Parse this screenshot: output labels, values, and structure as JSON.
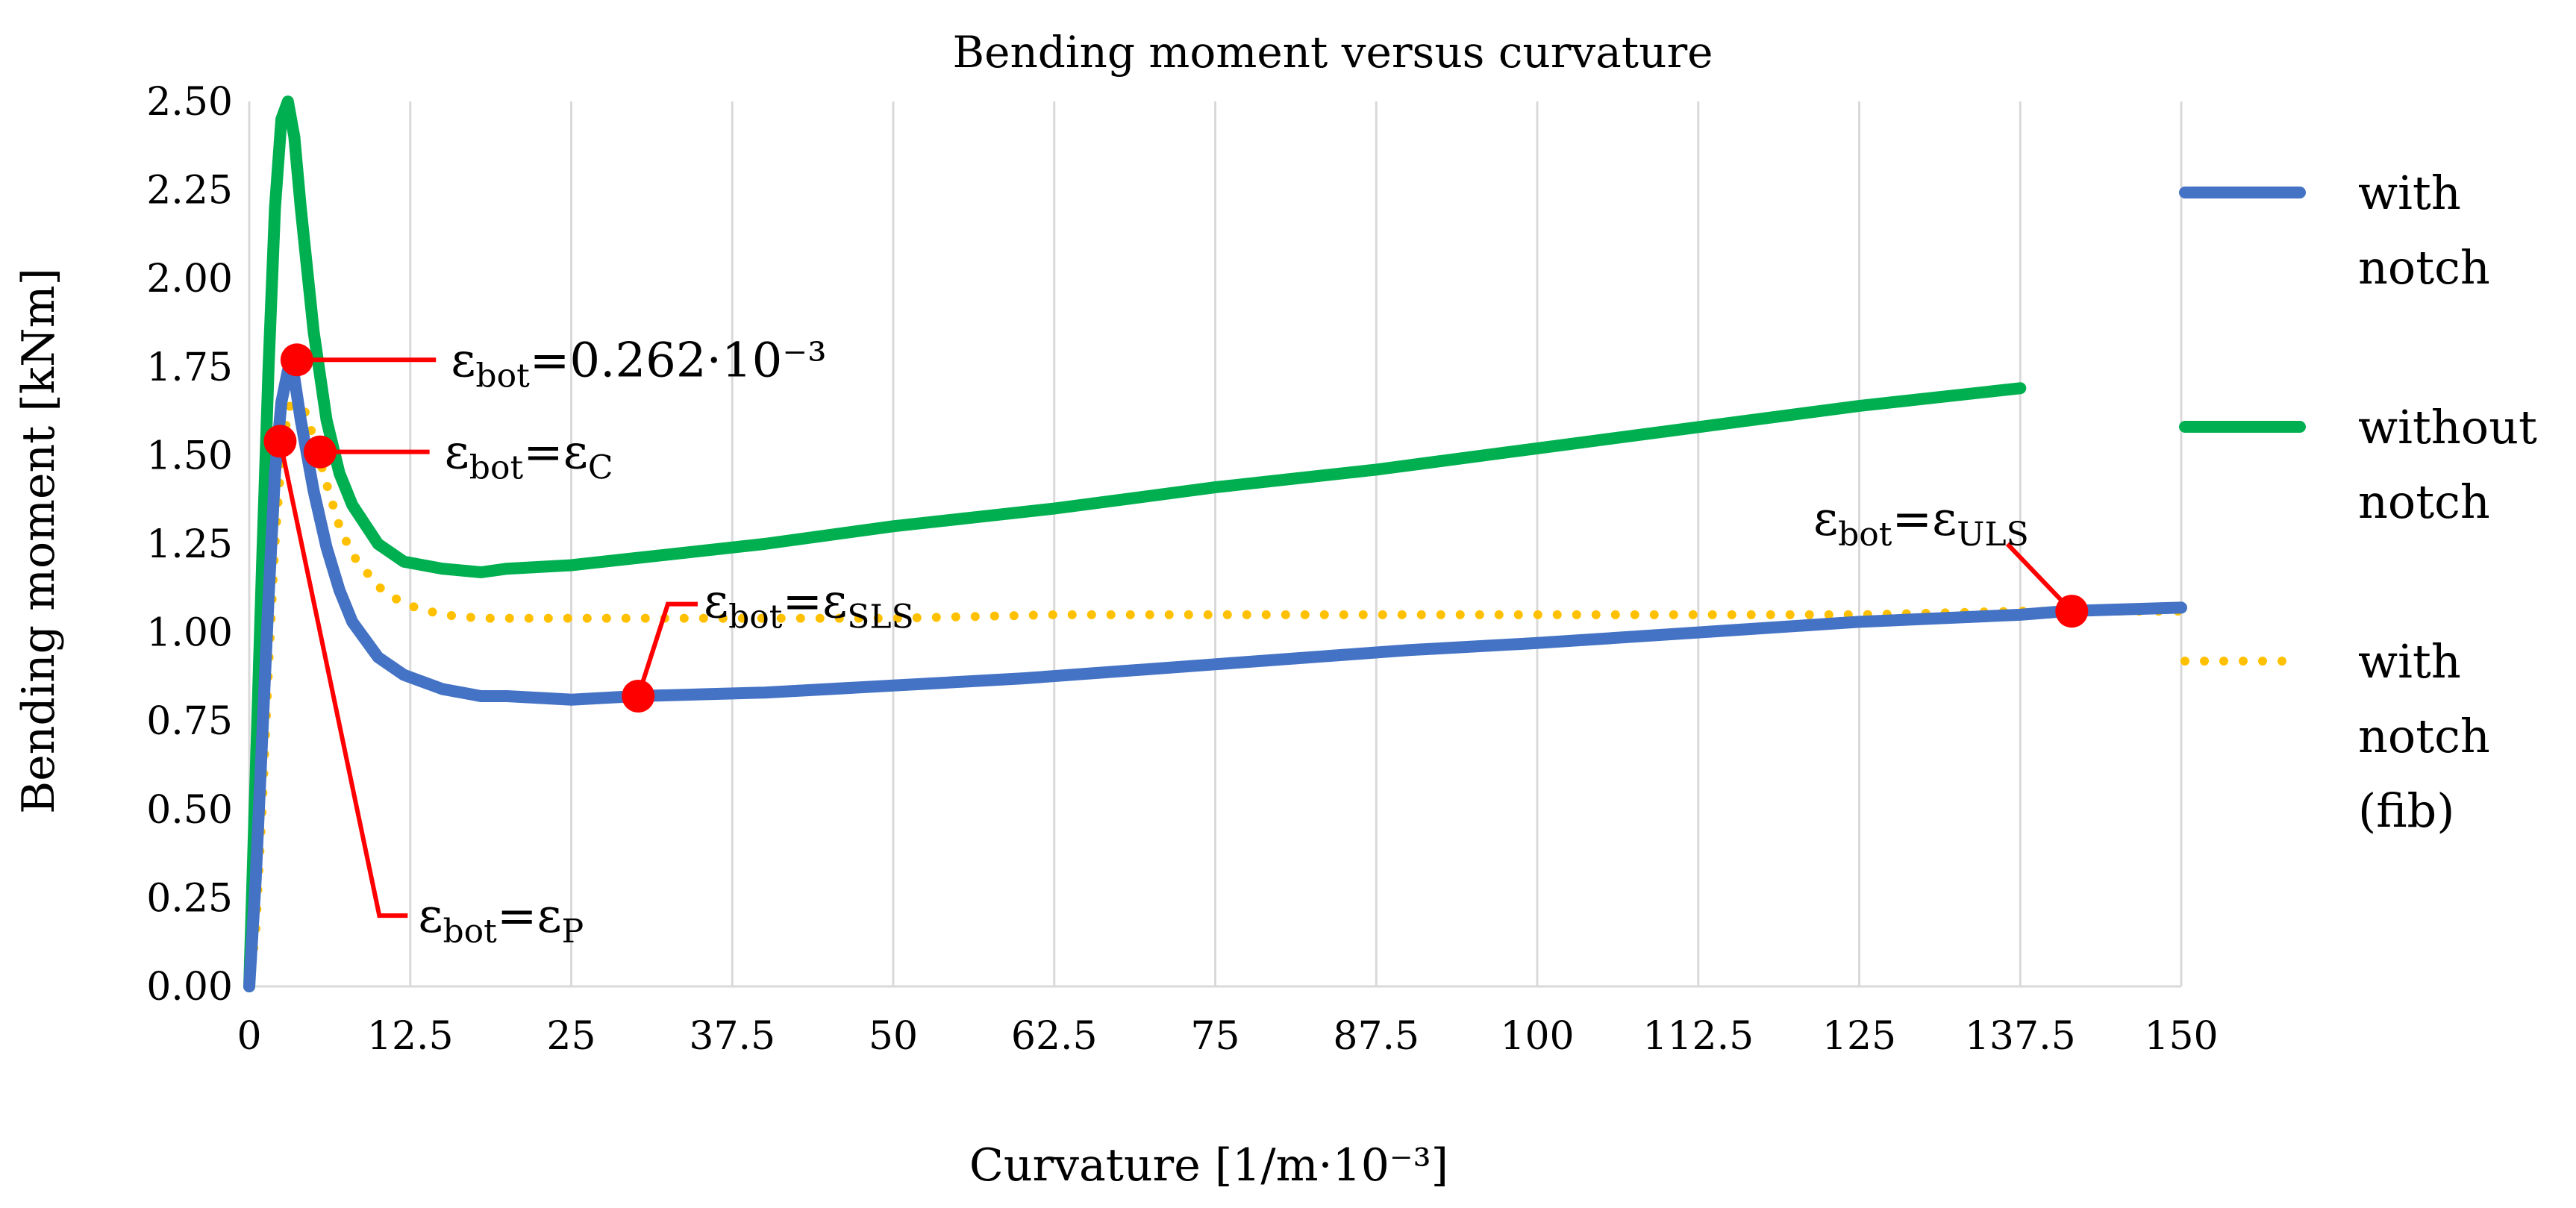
{
  "chart_data": {
    "type": "line",
    "title": "Bending moment versus curvature",
    "xlabel": "Curvature [1/m·10⁻³]",
    "ylabel": "Bending moment [kNm]",
    "xlim": [
      0,
      150
    ],
    "ylim": [
      0,
      2.5
    ],
    "x_ticks": [
      "0",
      "12.5",
      "25",
      "37.5",
      "50",
      "62.5",
      "75",
      "87.5",
      "100",
      "112.5",
      "125",
      "137.5",
      "150"
    ],
    "y_ticks": [
      "0.00",
      "0.25",
      "0.50",
      "0.75",
      "1.00",
      "1.25",
      "1.50",
      "1.75",
      "2.00",
      "2.25",
      "2.50"
    ],
    "grid": "vertical",
    "legend_position": "right",
    "series": [
      {
        "name": "with notch",
        "legend_lines": [
          "with",
          "notch"
        ],
        "color": "#4472C4",
        "style": "solid",
        "x": [
          0,
          0.5,
          1,
          1.5,
          2,
          2.5,
          3,
          3.5,
          4,
          5,
          6,
          7,
          8,
          10,
          12,
          15,
          18,
          20,
          25,
          30,
          40,
          50,
          60,
          75,
          90,
          100,
          112.5,
          125,
          137.5,
          141,
          150
        ],
        "y": [
          0,
          0.3,
          0.7,
          1.1,
          1.45,
          1.65,
          1.74,
          1.72,
          1.6,
          1.4,
          1.24,
          1.12,
          1.03,
          0.93,
          0.88,
          0.84,
          0.82,
          0.82,
          0.81,
          0.82,
          0.83,
          0.85,
          0.87,
          0.91,
          0.95,
          0.97,
          1.0,
          1.03,
          1.05,
          1.06,
          1.07
        ]
      },
      {
        "name": "without notch",
        "legend_lines": [
          "without",
          "notch"
        ],
        "color": "#00B050",
        "style": "solid",
        "x": [
          0,
          0.5,
          1,
          1.5,
          2,
          2.5,
          3,
          3.5,
          4,
          5,
          6,
          7,
          8,
          10,
          12,
          15,
          18,
          20,
          25,
          30,
          40,
          50,
          62.5,
          75,
          87.5,
          100,
          112.5,
          125,
          137.5
        ],
        "y": [
          0,
          0.6,
          1.2,
          1.75,
          2.2,
          2.45,
          2.5,
          2.4,
          2.2,
          1.85,
          1.6,
          1.45,
          1.36,
          1.25,
          1.2,
          1.18,
          1.17,
          1.18,
          1.19,
          1.21,
          1.25,
          1.3,
          1.35,
          1.41,
          1.46,
          1.52,
          1.58,
          1.64,
          1.69
        ]
      },
      {
        "name": "with notch (fib)",
        "legend_lines": [
          "with",
          "notch",
          "(fib)"
        ],
        "color": "#FFC000",
        "style": "dotted",
        "x": [
          0,
          0.5,
          1,
          1.5,
          2,
          2.5,
          3,
          3.5,
          4,
          5,
          6,
          7,
          8,
          10,
          12,
          15,
          18,
          20,
          25,
          30,
          40,
          50,
          62.5,
          75,
          87.5,
          100,
          112.5,
          125,
          137.5,
          150
        ],
        "y": [
          0,
          0.15,
          0.5,
          0.9,
          1.25,
          1.5,
          1.62,
          1.68,
          1.66,
          1.55,
          1.42,
          1.3,
          1.22,
          1.13,
          1.08,
          1.05,
          1.04,
          1.04,
          1.04,
          1.04,
          1.04,
          1.04,
          1.05,
          1.05,
          1.05,
          1.05,
          1.05,
          1.05,
          1.06,
          1.06
        ]
      }
    ],
    "annotations": [
      {
        "id": "eps-0262",
        "base": "ε",
        "sub": "bot",
        "rest": "=0.262·10⁻³",
        "rest_sub": "",
        "point": [
          3.7,
          1.77
        ],
        "anchor": [
          14.5,
          1.77
        ]
      },
      {
        "id": "eps-c",
        "base": "ε",
        "sub": "bot",
        "rest": "=ε",
        "rest_sub": "C",
        "point": [
          5.5,
          1.51
        ],
        "anchor": [
          14,
          1.51
        ]
      },
      {
        "id": "eps-p",
        "base": "ε",
        "sub": "bot",
        "rest": "=ε",
        "rest_sub": "P",
        "point": [
          2.4,
          1.54
        ],
        "anchor": [
          10.1,
          0.2
        ]
      },
      {
        "id": "eps-sls",
        "base": "ε",
        "sub": "bot",
        "rest": "=ε",
        "rest_sub": "SLS",
        "point": [
          30.2,
          0.82
        ],
        "anchor": [
          32.5,
          1.08
        ]
      },
      {
        "id": "eps-uls",
        "base": "ε",
        "sub": "bot",
        "rest": "=ε",
        "rest_sub": "ULS",
        "point": [
          141.5,
          1.06
        ],
        "anchor": [
          136.5,
          1.25
        ]
      }
    ],
    "annotation_color": "#FF0000"
  }
}
